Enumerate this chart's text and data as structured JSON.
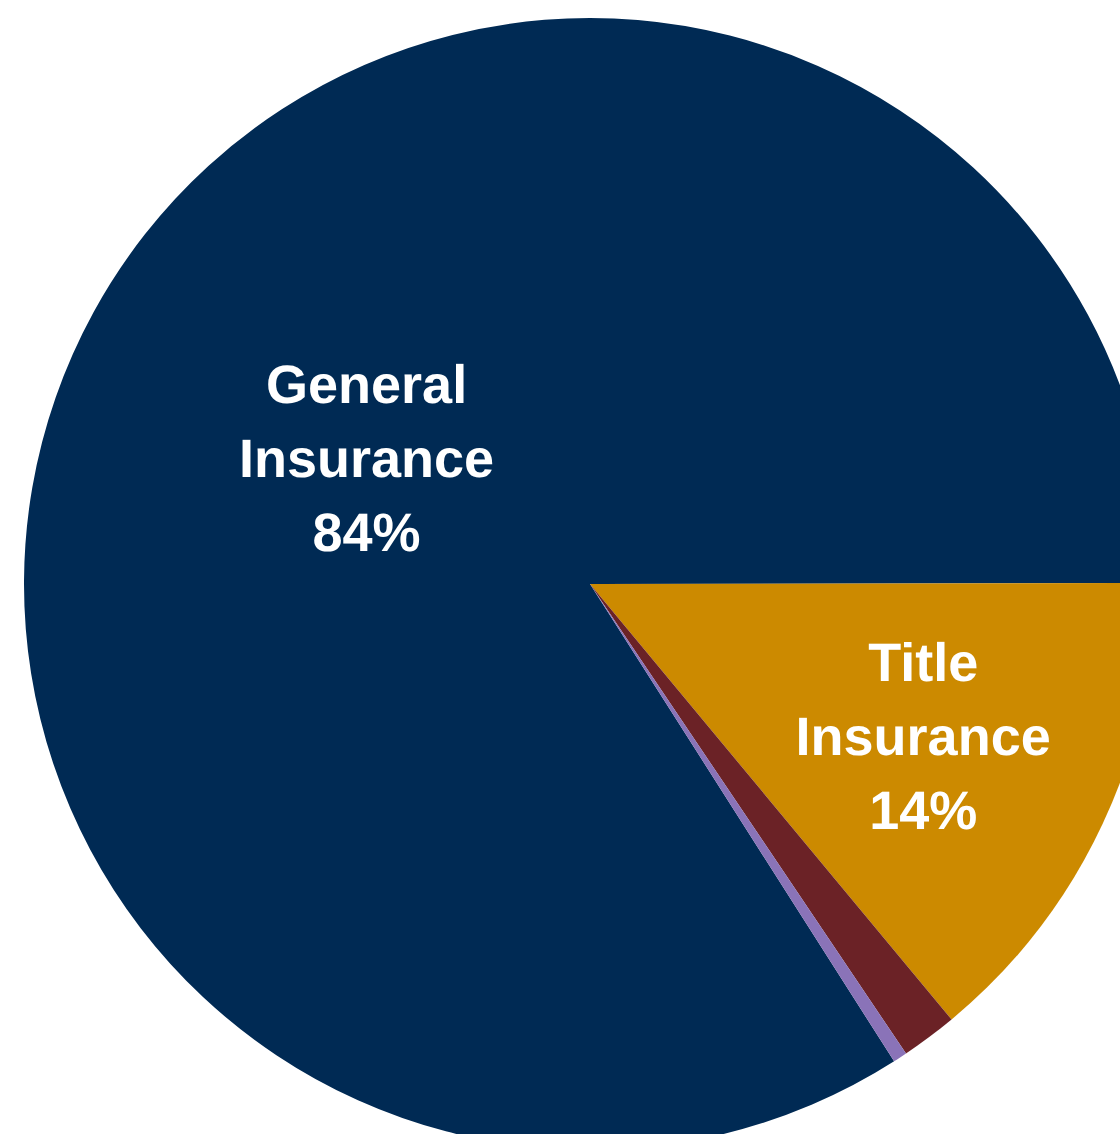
{
  "chart_data": {
    "type": "pie",
    "categories": [
      "General Insurance",
      "Title Insurance",
      null,
      null
    ],
    "values": [
      84,
      14,
      1.6,
      0.4
    ],
    "colors": [
      "#002a54",
      "#cc8a00",
      "#6b2226",
      "#8a73b8"
    ],
    "value_labels": [
      "84%",
      "14%",
      null,
      null
    ],
    "legend": false
  }
}
